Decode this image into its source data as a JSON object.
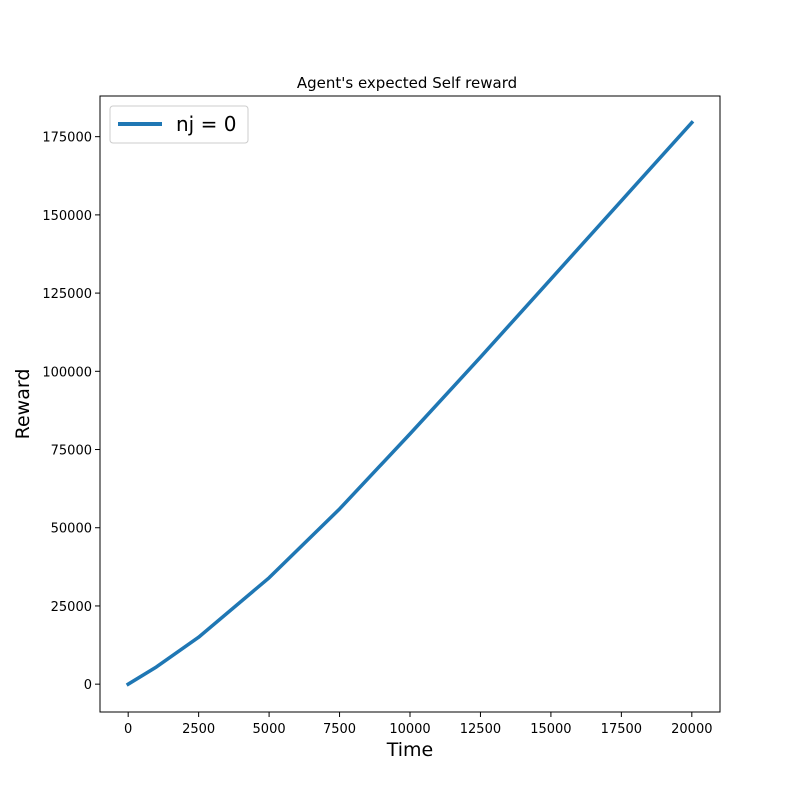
{
  "chart_data": {
    "type": "line",
    "title": "Agent's expected Self reward",
    "xlabel": "Time",
    "ylabel": "Reward",
    "xlim": [
      -1000,
      21000
    ],
    "ylim": [
      -8900,
      188000
    ],
    "xticks": [
      0,
      2500,
      5000,
      7500,
      10000,
      12500,
      15000,
      17500,
      20000
    ],
    "yticks": [
      0,
      25000,
      50000,
      75000,
      100000,
      125000,
      150000,
      175000
    ],
    "grid": false,
    "legend_position": "top-left",
    "series": [
      {
        "name": "nj = 0",
        "color": "#1f77b4",
        "x": [
          0,
          1000,
          2500,
          5000,
          7500,
          10000,
          12500,
          15000,
          17500,
          20000
        ],
        "y": [
          0,
          5500,
          15000,
          34000,
          56000,
          80000,
          104500,
          129500,
          154500,
          179500
        ]
      }
    ]
  }
}
